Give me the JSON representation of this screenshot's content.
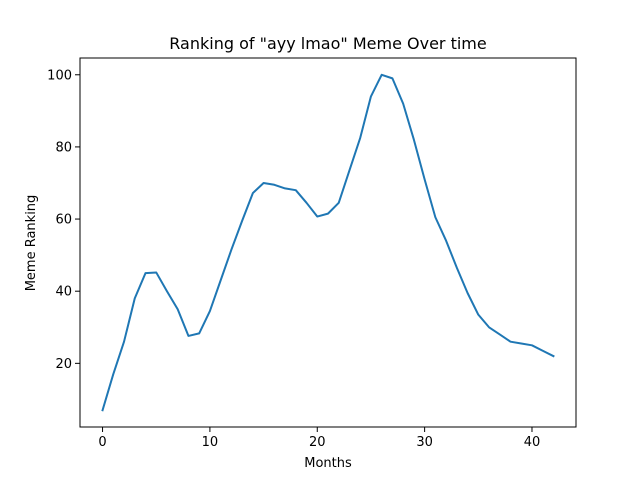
{
  "chart_data": {
    "type": "line",
    "title": "Ranking of \"ayy lmao\" Meme Over time",
    "xlabel": "Months",
    "ylabel": "Meme Ranking",
    "xlim": [
      -2.1,
      44.1
    ],
    "ylim": [
      2.35,
      104.65
    ],
    "x_ticks": [
      0,
      10,
      20,
      30,
      40
    ],
    "x_tick_labels": [
      "0",
      "10",
      "20",
      "30",
      "40"
    ],
    "y_ticks": [
      20,
      40,
      60,
      80,
      100
    ],
    "y_tick_labels": [
      "20",
      "40",
      "60",
      "80",
      "100"
    ],
    "grid": false,
    "series": [
      {
        "color": "#1f77b4",
        "x": [
          0,
          1,
          2,
          3,
          4,
          5,
          6,
          7,
          8,
          9,
          10,
          11,
          12,
          13,
          14,
          15,
          16,
          17,
          18,
          19,
          20,
          21,
          22,
          23,
          24,
          25,
          26,
          27,
          28,
          29,
          30,
          31,
          32,
          33,
          34,
          35,
          36,
          37,
          38,
          39,
          40,
          41,
          42
        ],
        "values": [
          7,
          17,
          26,
          38,
          45,
          45.2,
          40,
          35,
          27.6,
          28.3,
          34.5,
          43,
          51.5,
          59.5,
          67.2,
          70,
          69.5,
          68.5,
          68,
          64.5,
          60.7,
          61.5,
          64.5,
          73.5,
          82.5,
          94,
          100,
          99,
          92,
          82,
          71,
          60.5,
          54,
          46.5,
          39.5,
          33.5,
          30,
          28,
          26,
          25.5,
          25,
          23.5,
          22
        ]
      }
    ]
  }
}
